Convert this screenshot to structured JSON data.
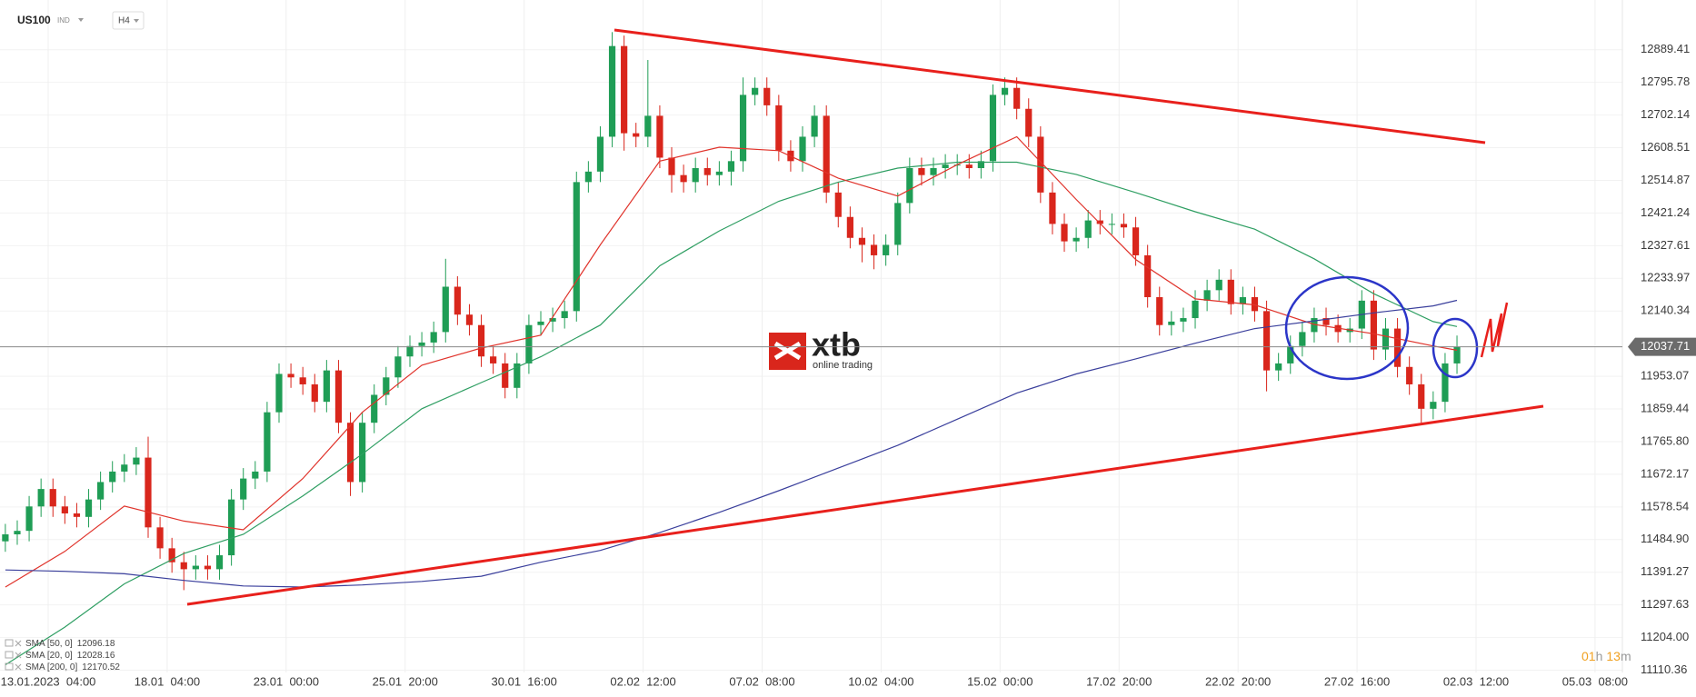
{
  "chart_data": {
    "type": "candlestick",
    "title": "US100",
    "instrument_type": "IND",
    "timeframe": "H4",
    "up_color": "#1f9d55",
    "down_color": "#d9261c",
    "open": [
      11480,
      11500,
      11510,
      11580,
      11630,
      11580,
      11560,
      11550,
      11600,
      11650,
      11680,
      11700,
      11720,
      11520,
      11460,
      11420,
      11400,
      11410,
      11400,
      11440,
      11600,
      11660,
      11680,
      11850,
      11960,
      11950,
      11930,
      11880,
      11970,
      11820,
      11650,
      11820,
      11900,
      11950,
      12010,
      12040,
      12050,
      12080,
      12210,
      12130,
      12100,
      12010,
      11990,
      11920,
      11990,
      12100,
      12110,
      12120,
      12140,
      12510,
      12540,
      12640,
      12900,
      12650,
      12640,
      12700,
      12580,
      12530,
      12510,
      12550,
      12530,
      12540,
      12570,
      12760,
      12780,
      12730,
      12600,
      12570,
      12640,
      12700,
      12480,
      12410,
      12350,
      12330,
      12300,
      12330,
      12450,
      12550,
      12530,
      12550,
      12560,
      12560,
      12550,
      12570,
      12760,
      12780,
      12720,
      12640,
      12480,
      12390,
      12340,
      12350,
      12400,
      12390,
      12390,
      12380,
      12300,
      12180,
      12100,
      12110,
      12120,
      12170,
      12200,
      12230,
      12160,
      12180,
      12140,
      11970,
      11990,
      12040,
      12080,
      12120,
      12100,
      12080,
      12090,
      12170,
      12030,
      12090,
      11980,
      11930,
      11860,
      11880,
      11990
    ],
    "high": [
      11530,
      11540,
      11610,
      11660,
      11660,
      11610,
      11590,
      11630,
      11680,
      11710,
      11730,
      11750,
      11780,
      11550,
      11490,
      11450,
      11440,
      11440,
      11470,
      11630,
      11690,
      11710,
      11880,
      11990,
      11990,
      11980,
      11960,
      12000,
      12000,
      11850,
      11850,
      11930,
      11980,
      12040,
      12070,
      12080,
      12110,
      12290,
      12240,
      12160,
      12130,
      12040,
      12020,
      12020,
      12130,
      12140,
      12150,
      12170,
      12540,
      12570,
      12670,
      12940,
      12930,
      12680,
      12860,
      12730,
      12610,
      12560,
      12580,
      12580,
      12570,
      12600,
      12810,
      12810,
      12810,
      12760,
      12630,
      12670,
      12730,
      12730,
      12510,
      12440,
      12380,
      12360,
      12360,
      12480,
      12580,
      12580,
      12580,
      12590,
      12590,
      12590,
      12600,
      12790,
      12810,
      12810,
      12750,
      12670,
      12510,
      12420,
      12380,
      12430,
      12430,
      12420,
      12420,
      12410,
      12330,
      12210,
      12140,
      12150,
      12200,
      12230,
      12260,
      12260,
      12210,
      12210,
      12170,
      12020,
      12070,
      12110,
      12150,
      12150,
      12130,
      12120,
      12200,
      12200,
      12120,
      12120,
      12010,
      11960,
      11910,
      12020,
      12070
    ],
    "low": [
      11450,
      11470,
      11480,
      11550,
      11550,
      11530,
      11520,
      11520,
      11570,
      11620,
      11650,
      11670,
      11490,
      11430,
      11390,
      11340,
      11370,
      11370,
      11370,
      11410,
      11570,
      11630,
      11650,
      11820,
      11920,
      11900,
      11850,
      11850,
      11790,
      11610,
      11620,
      11790,
      11870,
      11920,
      11980,
      12010,
      12020,
      12050,
      12100,
      12070,
      11980,
      11960,
      11890,
      11890,
      11960,
      12070,
      12080,
      12090,
      12110,
      12480,
      12510,
      12610,
      12600,
      12610,
      12610,
      12550,
      12480,
      12480,
      12480,
      12500,
      12500,
      12500,
      12540,
      12730,
      12700,
      12570,
      12540,
      12540,
      12610,
      12450,
      12380,
      12320,
      12280,
      12260,
      12270,
      12300,
      12420,
      12500,
      12500,
      12520,
      12530,
      12520,
      12520,
      12540,
      12730,
      12690,
      12610,
      12450,
      12360,
      12310,
      12310,
      12320,
      12360,
      12360,
      12350,
      12270,
      12150,
      12070,
      12070,
      12080,
      12090,
      12140,
      12170,
      12130,
      12130,
      12110,
      11910,
      11940,
      11960,
      12010,
      12050,
      12070,
      12050,
      12050,
      12060,
      12000,
      12000,
      11950,
      11900,
      11820,
      11830,
      11850,
      11960
    ],
    "close": [
      11500,
      11510,
      11580,
      11630,
      11580,
      11560,
      11550,
      11600,
      11650,
      11680,
      11700,
      11720,
      11520,
      11460,
      11420,
      11400,
      11410,
      11400,
      11440,
      11600,
      11660,
      11680,
      11850,
      11960,
      11950,
      11930,
      11880,
      11970,
      11820,
      11650,
      11820,
      11900,
      11950,
      12010,
      12040,
      12050,
      12080,
      12210,
      12130,
      12100,
      12010,
      11990,
      11920,
      11990,
      12100,
      12110,
      12120,
      12140,
      12510,
      12540,
      12640,
      12900,
      12650,
      12640,
      12700,
      12580,
      12530,
      12510,
      12550,
      12530,
      12540,
      12570,
      12760,
      12780,
      12730,
      12600,
      12570,
      12640,
      12700,
      12480,
      12410,
      12350,
      12330,
      12300,
      12330,
      12450,
      12550,
      12530,
      12550,
      12560,
      12560,
      12550,
      12570,
      12760,
      12780,
      12720,
      12640,
      12480,
      12390,
      12340,
      12350,
      12400,
      12390,
      12390,
      12380,
      12300,
      12180,
      12100,
      12110,
      12120,
      12170,
      12200,
      12230,
      12160,
      12180,
      12140,
      11970,
      11990,
      12040,
      12080,
      12120,
      12100,
      12080,
      12090,
      12170,
      12030,
      12090,
      11980,
      11930,
      11860,
      11880,
      11990,
      12037.71
    ],
    "last_price": 12037.71,
    "sma": [
      {
        "name": "SMA [50, 0]",
        "color": "#2e9e62",
        "last_value": 12096.18,
        "x": [
          0,
          5,
          10,
          15,
          20,
          25,
          30,
          35,
          40,
          45,
          50,
          55,
          60,
          65,
          70,
          75,
          80,
          85,
          90,
          95,
          100,
          105,
          110,
          115,
          120,
          122
        ],
        "values": [
          11126,
          11234,
          11358,
          11445,
          11500,
          11610,
          11730,
          11860,
          11935,
          12009,
          12100,
          12270,
          12370,
          12455,
          12510,
          12550,
          12567,
          12567,
          12532,
          12480,
          12425,
          12375,
          12290,
          12190,
          12110,
          12096
        ]
      },
      {
        "name": "SMA [20, 0]",
        "color": "#e0332b",
        "last_value": 12028.16,
        "x": [
          0,
          5,
          10,
          15,
          20,
          25,
          30,
          35,
          40,
          45,
          50,
          55,
          60,
          65,
          70,
          75,
          80,
          85,
          90,
          95,
          100,
          105,
          110,
          115,
          120,
          122
        ],
        "values": [
          11349,
          11451,
          11581,
          11538,
          11513,
          11660,
          11850,
          11985,
          12034,
          12071,
          12330,
          12570,
          12610,
          12600,
          12521,
          12470,
          12560,
          12640,
          12460,
          12288,
          12175,
          12158,
          12102,
          12075,
          12040,
          12028
        ]
      },
      {
        "name": "SMA [200, 0]",
        "color": "#3a3f9c",
        "last_value": 12170.52,
        "x": [
          0,
          5,
          10,
          15,
          20,
          25,
          30,
          35,
          40,
          45,
          50,
          55,
          60,
          65,
          70,
          75,
          80,
          85,
          90,
          95,
          100,
          105,
          110,
          115,
          120,
          122
        ],
        "values": [
          11398,
          11394,
          11387,
          11368,
          11352,
          11349,
          11355,
          11365,
          11380,
          11420,
          11454,
          11505,
          11563,
          11625,
          11690,
          11755,
          11830,
          11905,
          11960,
          12003,
          12048,
          12090,
          12112,
          12135,
          12155,
          12171
        ]
      }
    ],
    "xlim": [
      -0.45,
      135.9
    ],
    "ylim": [
      11104,
      13032
    ],
    "yticks": [
      11110.36,
      {
        "value": 11204,
        "label": "11204.00"
      },
      11297.63,
      11391.27,
      {
        "value": 11484.9,
        "label": "11484.90"
      },
      11578.54,
      11672.17,
      {
        "value": 11765.8,
        "label": "11765.80"
      },
      11859.44,
      11953.07,
      12140.34,
      12233.97,
      12327.61,
      12421.24,
      12514.87,
      12608.51,
      12702.14,
      12795.78,
      12889.41
    ],
    "xticks": [
      {
        "value": 3.6,
        "label": "13.01.2023  04:00"
      },
      {
        "value": 13.6,
        "label": "18.01  04:00"
      },
      {
        "value": 23.6,
        "label": "23.01  00:00"
      },
      {
        "value": 33.6,
        "label": "25.01  20:00"
      },
      {
        "value": 43.6,
        "label": "30.01  16:00"
      },
      {
        "value": 53.6,
        "label": "02.02  12:00"
      },
      {
        "value": 63.6,
        "label": "07.02  08:00"
      },
      {
        "value": 73.6,
        "label": "10.02  04:00"
      },
      {
        "value": 83.6,
        "label": "15.02  00:00"
      },
      {
        "value": 93.6,
        "label": "17.02  20:00"
      },
      {
        "value": 103.6,
        "label": "22.02  20:00"
      },
      {
        "value": 113.6,
        "label": "27.02  16:00"
      },
      {
        "value": 123.6,
        "label": "02.03  12:00"
      },
      {
        "value": 133.6,
        "label": "05.03  08:00"
      }
    ],
    "grid": true,
    "countdown": [
      "01",
      "h",
      "13",
      "m"
    ],
    "logo": {
      "name": "xtb",
      "tagline": "online trading"
    }
  }
}
